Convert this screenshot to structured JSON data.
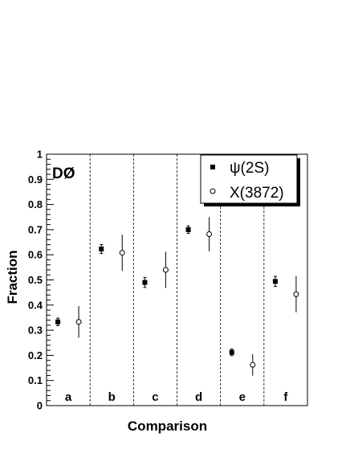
{
  "chart_data": {
    "type": "scatter",
    "xlabel": "Comparison",
    "ylabel": "Fraction",
    "ylim": [
      0,
      1
    ],
    "y_ticks": [
      "0",
      "0.1",
      "0.2",
      "0.3",
      "0.4",
      "0.5",
      "0.6",
      "0.7",
      "0.8",
      "0.9",
      "1"
    ],
    "categories": [
      "a",
      "b",
      "c",
      "d",
      "e",
      "f"
    ],
    "grid": "dashed vertical separators between categories",
    "experiment_label": "DØ",
    "legend_position": "top-right",
    "series": [
      {
        "name": "ψ(2S)",
        "marker": "filled-square",
        "values": [
          0.333,
          0.623,
          0.49,
          0.7,
          0.212,
          0.494
        ],
        "errors": [
          0.015,
          0.018,
          0.02,
          0.015,
          0.013,
          0.02
        ]
      },
      {
        "name": "X(3872)",
        "marker": "open-circle",
        "values": [
          0.333,
          0.608,
          0.54,
          0.682,
          0.162,
          0.443
        ],
        "errors": [
          0.063,
          0.072,
          0.072,
          0.068,
          0.043,
          0.072
        ]
      }
    ]
  }
}
